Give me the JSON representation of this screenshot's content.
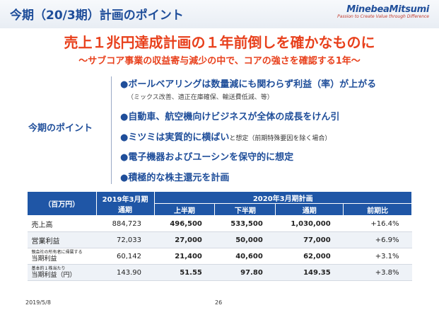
{
  "header": {
    "title": "今期（20/3期）計画のポイント",
    "logo_name": "MinebeaMitsumi",
    "logo_tagline": "Passion to Create Value through Difference"
  },
  "headline": "売上１兆円達成計画の１年前倒しを確かなものに",
  "subline": "～サブコア事業の収益寄与減少の中で、コアの強さを確認する1年～",
  "points_label": "今期のポイント",
  "points": [
    {
      "text": "●ボールベアリングは数量減にも関わらず利益（率）が上がる",
      "note": "（ミックス改善、適正在庫確保、輸送費低減、等）"
    },
    {
      "text": "●自動車、航空機向けビジネスが全体の成長をけん引"
    },
    {
      "text": "●ミツミは実質的に横ばい",
      "suffix": "と想定（前期特殊要因を除く場合）"
    },
    {
      "text": "●電子機器およびユーシンを保守的に想定"
    },
    {
      "text": "●積極的な株主還元を計画"
    }
  ],
  "table": {
    "unit_label": "（百万円）",
    "prior_header_line1": "2019年3月期",
    "prior_header_line2": "通期",
    "plan_header": "2020年3月期計画",
    "sub_headers": [
      "上半期",
      "下半期",
      "通期",
      "前期比"
    ],
    "rows": [
      {
        "label": "売上高",
        "values": [
          "884,723",
          "496,500",
          "533,500",
          "1,030,000",
          "+16.4%"
        ]
      },
      {
        "label": "営業利益",
        "values": [
          "72,033",
          "27,000",
          "50,000",
          "77,000",
          "+6.9%"
        ]
      },
      {
        "label_small": "親会社の所有者に帰属する",
        "label": "当期利益",
        "values": [
          "60,142",
          "21,400",
          "40,600",
          "62,000",
          "+3.1%"
        ]
      },
      {
        "label_small": "基本的１株当たり",
        "label": "当期利益（円）",
        "values": [
          "143.90",
          "51.55",
          "97.80",
          "149.35",
          "+3.8%"
        ]
      }
    ]
  },
  "footer": {
    "date": "2019/5/8",
    "page": "26"
  }
}
